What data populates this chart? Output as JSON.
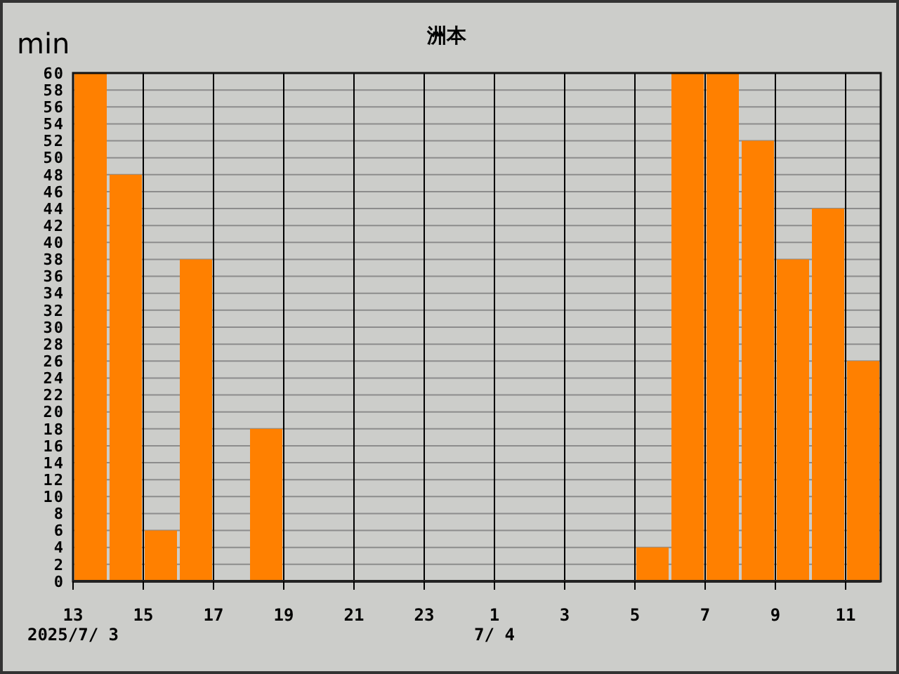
{
  "chart_data": {
    "type": "bar",
    "title": "洲本",
    "ylabel": "min",
    "x": [
      "2025-07-03T13:30",
      "2025-07-03T14:30",
      "2025-07-03T15:30",
      "2025-07-03T16:30",
      "2025-07-03T17:30",
      "2025-07-03T18:30",
      "2025-07-03T19:30",
      "2025-07-03T20:30",
      "2025-07-03T21:30",
      "2025-07-03T22:30",
      "2025-07-03T23:30",
      "2025-07-04T00:30",
      "2025-07-04T01:30",
      "2025-07-04T02:30",
      "2025-07-04T03:30",
      "2025-07-04T04:30",
      "2025-07-04T05:30",
      "2025-07-04T06:30",
      "2025-07-04T07:30",
      "2025-07-04T08:30",
      "2025-07-04T09:30",
      "2025-07-04T10:30",
      "2025-07-04T11:30"
    ],
    "values": [
      60,
      48,
      6,
      38,
      0,
      18,
      0,
      0,
      0,
      0,
      0,
      0,
      0,
      0,
      0,
      0,
      4,
      60,
      60,
      52,
      38,
      44,
      26
    ],
    "color": "#ff8000",
    "xlim": [
      "2025-07-03T13:00",
      "2025-07-04T12:00"
    ],
    "xticks": [
      {
        "value": "2025-07-03T13:00",
        "label": "13\n2025/7/ 3"
      },
      {
        "value": "2025-07-03T15:00",
        "label": "15"
      },
      {
        "value": "2025-07-03T17:00",
        "label": "17"
      },
      {
        "value": "2025-07-03T19:00",
        "label": "19"
      },
      {
        "value": "2025-07-03T21:00",
        "label": "21"
      },
      {
        "value": "2025-07-03T23:00",
        "label": "23"
      },
      {
        "value": "2025-07-04T01:00",
        "label": "1\n7/ 4"
      },
      {
        "value": "2025-07-04T03:00",
        "label": "3"
      },
      {
        "value": "2025-07-04T05:00",
        "label": "5"
      },
      {
        "value": "2025-07-04T07:00",
        "label": "7"
      },
      {
        "value": "2025-07-04T09:00",
        "label": "9"
      },
      {
        "value": "2025-07-04T11:00",
        "label": "11"
      }
    ],
    "ylim": [
      0,
      60
    ],
    "yticks": [
      0,
      2,
      4,
      6,
      8,
      10,
      12,
      14,
      16,
      18,
      20,
      22,
      24,
      26,
      28,
      30,
      32,
      34,
      36,
      38,
      40,
      42,
      44,
      46,
      48,
      50,
      52,
      54,
      56,
      58,
      60
    ],
    "grid": true
  }
}
